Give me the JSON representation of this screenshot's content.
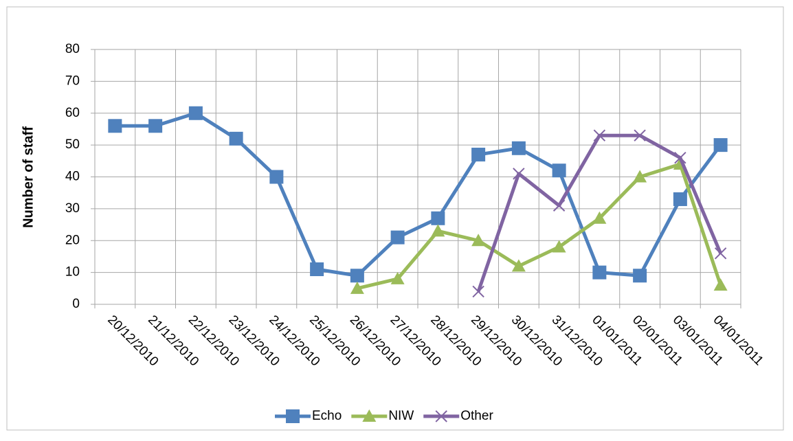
{
  "chart_data": {
    "type": "line",
    "y_label": "Number of staff",
    "categories": [
      "20/12/2010",
      "21/12/2010",
      "22/12/2010",
      "23/12/2010",
      "24/12/2010",
      "25/12/2010",
      "26/12/2010",
      "27/12/2010",
      "28/12/2010",
      "29/12/2010",
      "30/12/2010",
      "31/12/2010",
      "01/01/2011",
      "02/01/2011",
      "03/01/2011",
      "04/01/2011"
    ],
    "series": [
      {
        "name": "Echo",
        "color": "#4f81bd",
        "marker": "square",
        "values": [
          56,
          56,
          60,
          52,
          40,
          11,
          9,
          21,
          27,
          47,
          49,
          42,
          10,
          9,
          33,
          50
        ]
      },
      {
        "name": "NIW",
        "color": "#9bbb59",
        "marker": "triangle",
        "values": [
          null,
          null,
          null,
          null,
          null,
          null,
          5,
          8,
          23,
          20,
          12,
          18,
          27,
          40,
          44,
          6
        ]
      },
      {
        "name": "Other",
        "color": "#8064a2",
        "marker": "x",
        "values": [
          null,
          null,
          null,
          null,
          null,
          null,
          null,
          null,
          null,
          4,
          41,
          31,
          53,
          53,
          46,
          16
        ]
      }
    ],
    "ylim": [
      0,
      80
    ],
    "yticks": [
      0,
      10,
      20,
      30,
      40,
      50,
      60,
      70,
      80
    ],
    "grid": true,
    "legend": "bottom"
  }
}
